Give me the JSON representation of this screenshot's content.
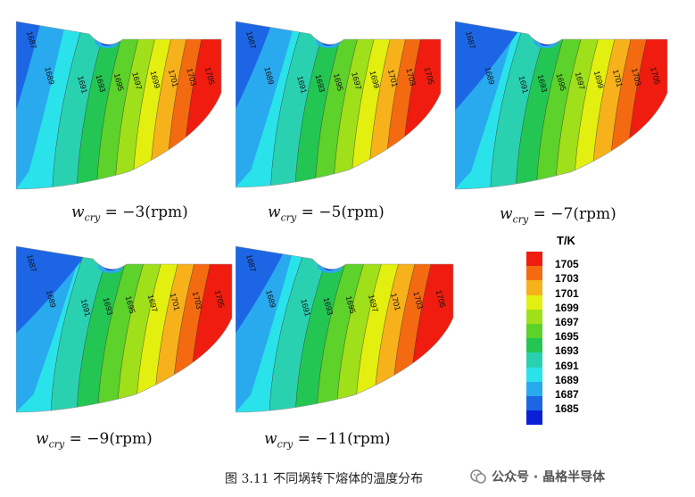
{
  "chart_data": {
    "type": "heatmap",
    "colorbar": {
      "title": "T/K",
      "levels": [
        1705,
        1703,
        1701,
        1699,
        1697,
        1695,
        1693,
        1691,
        1689,
        1687,
        1685
      ],
      "colors": [
        "#ef1c0f",
        "#f46a10",
        "#f7b11a",
        "#e3f00f",
        "#9fe01a",
        "#5cd22a",
        "#23c653",
        "#2ad1b0",
        "#29e2ea",
        "#2aaaee",
        "#1c66e6",
        "#0a1fd6"
      ]
    },
    "panels": [
      {
        "caption": "w_cry = −3(rpm)",
        "wcry": "cry",
        "rpm_text": "= −3(rpm)",
        "contour_labels": [
          "1687",
          "1689",
          "1691",
          "1693",
          "1695",
          "1697",
          "1699",
          "1701",
          "1703",
          "1705"
        ]
      },
      {
        "caption": "w_cry = −5(rpm)",
        "wcry": "cry",
        "rpm_text": "= −5(rpm)",
        "contour_labels": [
          "1687",
          "1689",
          "1691",
          "1693",
          "1695",
          "1697",
          "1699",
          "1701",
          "1703",
          "1705"
        ]
      },
      {
        "caption": "w_cry = −7(rpm)",
        "wcry": "cry",
        "rpm_text": "= −7(rpm)",
        "contour_labels": [
          "1687",
          "1689",
          "1691",
          "1693",
          "1695",
          "1697",
          "1699",
          "1701",
          "1703",
          "1705"
        ]
      },
      {
        "caption": "w_cry = −9(rpm)",
        "wcry": "cry",
        "rpm_text": "= −9(rpm)",
        "contour_labels": [
          "1687",
          "1689",
          "1691",
          "1693",
          "1695",
          "1697",
          "1701",
          "1703",
          "1705"
        ]
      },
      {
        "caption": "w_cry = −11(rpm)",
        "wcry": "cry",
        "rpm_text": "= −11(rpm)",
        "contour_labels": [
          "1687",
          "1689",
          "1691",
          "1693",
          "1695",
          "1697",
          "1701",
          "1703",
          "1705"
        ]
      }
    ]
  },
  "figure_caption": "图 3.11 不同埚转下熔体的温度分布",
  "watermark": "公众号 · 晶格半导体"
}
